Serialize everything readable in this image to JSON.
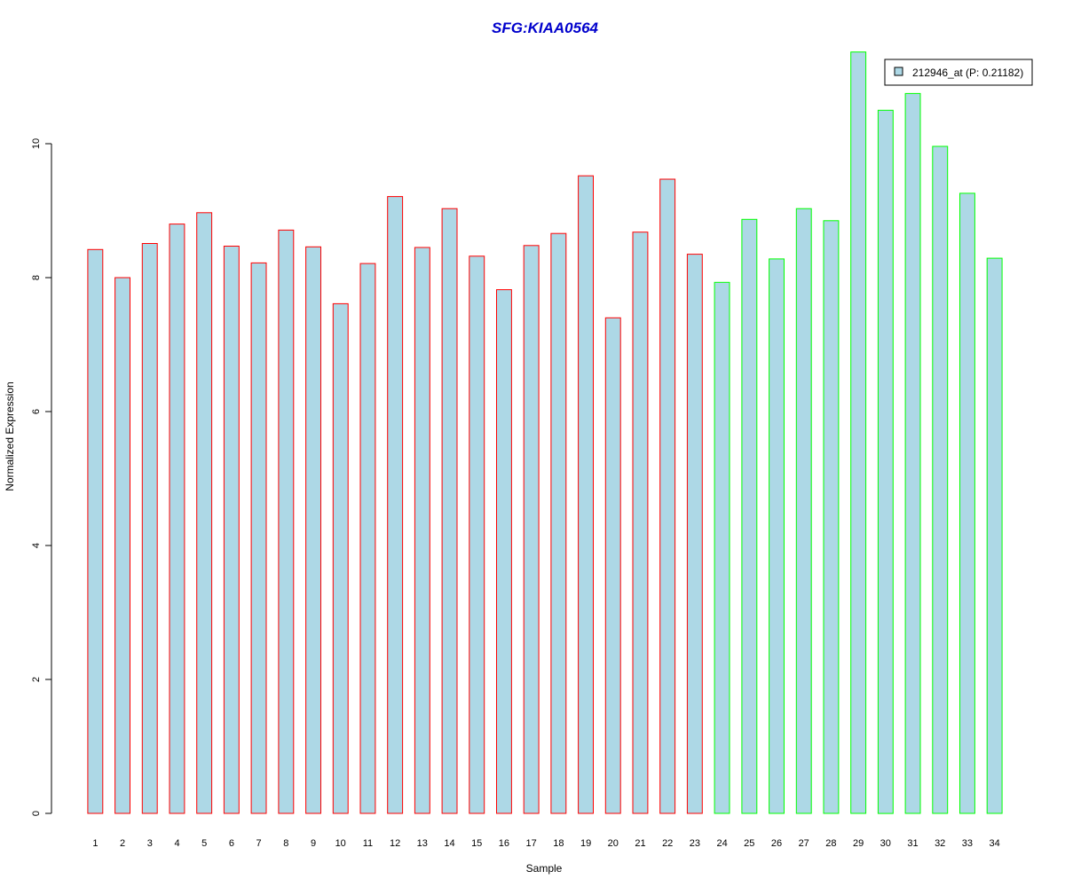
{
  "chart_data": {
    "type": "bar",
    "title": "SFG:KIAA0564",
    "xlabel": "Sample",
    "ylabel": "Normalized Expression",
    "categories": [
      "1",
      "2",
      "3",
      "4",
      "5",
      "6",
      "7",
      "8",
      "9",
      "10",
      "11",
      "12",
      "13",
      "14",
      "15",
      "16",
      "17",
      "18",
      "19",
      "20",
      "21",
      "22",
      "23",
      "24",
      "25",
      "26",
      "27",
      "28",
      "29",
      "30",
      "31",
      "32",
      "33",
      "34"
    ],
    "series": [
      {
        "name": "212946_at (P: 0.21182)",
        "values": [
          8.42,
          8.0,
          8.51,
          8.8,
          8.97,
          8.47,
          8.22,
          8.71,
          8.46,
          7.61,
          8.21,
          9.21,
          8.45,
          9.03,
          8.32,
          7.82,
          8.48,
          8.66,
          9.52,
          7.4,
          8.68,
          9.47,
          8.35,
          7.93,
          8.87,
          8.28,
          9.03,
          8.85,
          11.37,
          10.5,
          10.75,
          9.96,
          9.26,
          8.29
        ],
        "fill": "#add8e6"
      }
    ],
    "group_border_colors": [
      "#ff0000",
      "#ff0000",
      "#ff0000",
      "#ff0000",
      "#ff0000",
      "#ff0000",
      "#ff0000",
      "#ff0000",
      "#ff0000",
      "#ff0000",
      "#ff0000",
      "#ff0000",
      "#ff0000",
      "#ff0000",
      "#ff0000",
      "#ff0000",
      "#ff0000",
      "#ff0000",
      "#ff0000",
      "#ff0000",
      "#ff0000",
      "#ff0000",
      "#ff0000",
      "#00ff00",
      "#00ff00",
      "#00ff00",
      "#00ff00",
      "#00ff00",
      "#00ff00",
      "#00ff00",
      "#00ff00",
      "#00ff00",
      "#00ff00",
      "#00ff00"
    ],
    "yticks": [
      "0",
      "2",
      "4",
      "6",
      "8",
      "10"
    ],
    "ylim": [
      0,
      11.5
    ],
    "grid": false,
    "legend_position": "top-right",
    "colors": {
      "title": "#0000cc",
      "bar_fill": "#add8e6",
      "legend_key_border": "#000000"
    }
  }
}
